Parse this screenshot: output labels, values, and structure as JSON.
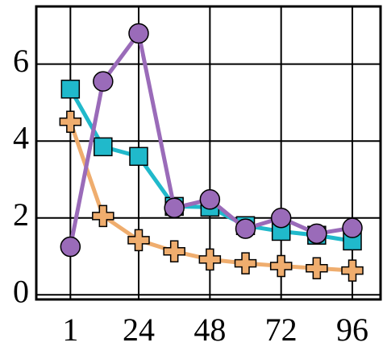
{
  "chart_data": {
    "type": "line",
    "x": [
      1,
      12,
      24,
      36,
      48,
      60,
      72,
      84,
      96
    ],
    "xlim": [
      -10.5,
      105.5
    ],
    "xticks": [
      1,
      24,
      48,
      72,
      96
    ],
    "ylim": [
      -0.12,
      7.5
    ],
    "yticks": [
      0,
      2,
      4,
      6
    ],
    "grid": true,
    "series": [
      {
        "color": "#20b9cb",
        "marker": "square",
        "values": [
          5.35,
          3.85,
          3.6,
          2.3,
          2.28,
          1.8,
          1.65,
          1.55,
          1.4
        ]
      },
      {
        "color": "#efad6e",
        "marker": "plus",
        "values": [
          4.5,
          2.05,
          1.42,
          1.13,
          0.92,
          0.82,
          0.75,
          0.69,
          0.63
        ]
      },
      {
        "color": "#9a6bb9",
        "marker": "circle",
        "values": [
          1.25,
          5.55,
          6.8,
          2.26,
          2.48,
          1.72,
          2.0,
          1.59,
          1.74
        ]
      }
    ]
  }
}
